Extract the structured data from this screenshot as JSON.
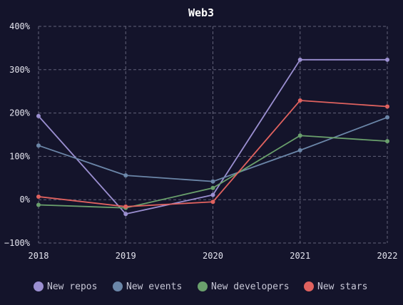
{
  "chart_data": {
    "type": "line",
    "title": "Web3",
    "xlabel": "",
    "ylabel": "",
    "x": [
      "2018",
      "2019",
      "2020",
      "2021",
      "2022"
    ],
    "y_ticks": [
      "400%",
      "300%",
      "200%",
      "100%",
      "0%",
      "−100%"
    ],
    "y_tick_values": [
      400,
      300,
      200,
      100,
      0,
      -100
    ],
    "ylim": [
      -100,
      400
    ],
    "grid": true,
    "legend_position": "bottom",
    "series": [
      {
        "name": "New repos",
        "color": "#9b8fd1",
        "values": [
          193,
          -33,
          11,
          323,
          323
        ]
      },
      {
        "name": "New events",
        "color": "#6b86a8",
        "values": [
          125,
          56,
          42,
          114,
          190
        ]
      },
      {
        "name": "New developers",
        "color": "#6aa06c",
        "values": [
          -12,
          -19,
          27,
          148,
          135
        ]
      },
      {
        "name": "New stars",
        "color": "#e0625f",
        "values": [
          7,
          -16,
          -5,
          229,
          215
        ]
      }
    ]
  }
}
